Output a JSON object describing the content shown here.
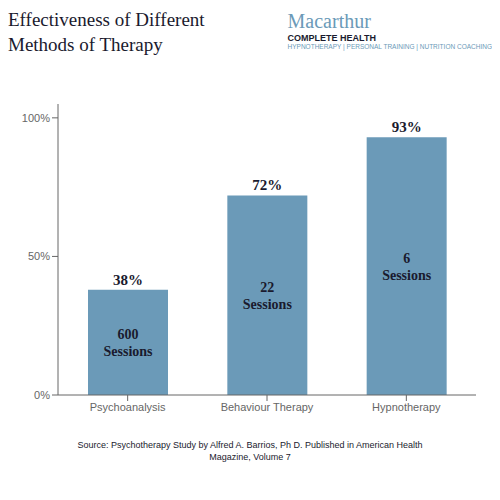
{
  "chart_data": {
    "type": "bar",
    "title": "Effectiveness of Different\nMethods of Therapy",
    "categories": [
      "Psychoanalysis",
      "Behaviour Therapy",
      "Hypnotherapy"
    ],
    "values": [
      38,
      72,
      93
    ],
    "value_labels": [
      "38%",
      "72%",
      "93%"
    ],
    "data_labels": true,
    "color": "#6b9ab8",
    "ylim": [
      0,
      105
    ],
    "yticks": [
      {
        "value": 0,
        "label": "0%"
      },
      {
        "value": 50,
        "label": "50%"
      },
      {
        "value": 100,
        "label": "100%"
      }
    ],
    "grid": false,
    "annotations": [
      {
        "text": "600\nSessions",
        "category": "Psychoanalysis"
      },
      {
        "text": "22\nSessions",
        "category": "Behaviour Therapy"
      },
      {
        "text": "6\nSessions",
        "category": "Hypnotherapy"
      },
      "Macarthur",
      "COMPLETE HEALTH",
      "HYPNOTHERAPY | PERSONAL TRAINING | NUTRITION COACHING",
      "Source: Psychotherapy Study by Alfred A. Barrios, Ph D.  Published in American Health\nMagazine, Volume 7"
    ]
  }
}
